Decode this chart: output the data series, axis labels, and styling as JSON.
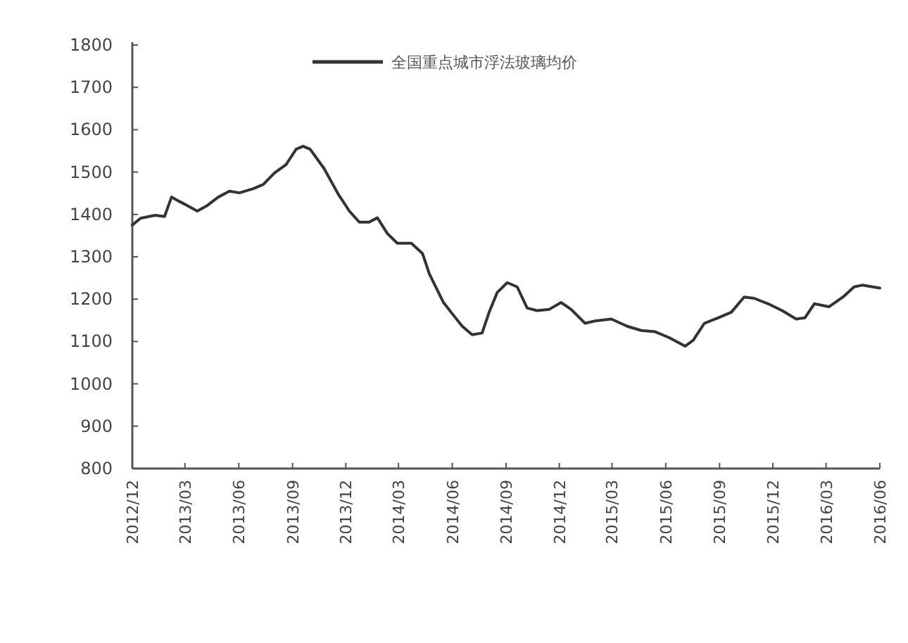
{
  "chart_data": {
    "type": "line",
    "legend": "top",
    "ylim": [
      800,
      1800
    ],
    "yticks": [
      800,
      900,
      1000,
      1100,
      1200,
      1300,
      1400,
      1500,
      1600,
      1700,
      1800
    ],
    "xlim": [
      "2012-12-01",
      "2016-06-01"
    ],
    "xticks": [
      {
        "value": "2012-12-01",
        "label": "2012/12"
      },
      {
        "value": "2013-03-01",
        "label": "2013/03"
      },
      {
        "value": "2013-06-01",
        "label": "2013/06"
      },
      {
        "value": "2013-09-01",
        "label": "2013/09"
      },
      {
        "value": "2013-12-01",
        "label": "2013/12"
      },
      {
        "value": "2014-03-01",
        "label": "2014/03"
      },
      {
        "value": "2014-06-01",
        "label": "2014/06"
      },
      {
        "value": "2014-09-01",
        "label": "2014/09"
      },
      {
        "value": "2014-12-01",
        "label": "2014/12"
      },
      {
        "value": "2015-03-01",
        "label": "2015/03"
      },
      {
        "value": "2015-06-01",
        "label": "2015/06"
      },
      {
        "value": "2015-09-01",
        "label": "2015/09"
      },
      {
        "value": "2015-12-01",
        "label": "2015/12"
      },
      {
        "value": "2016-03-01",
        "label": "2016/03"
      },
      {
        "value": "2016-06-01",
        "label": "2016/06"
      }
    ],
    "series": [
      {
        "name": "全国重点城市浮法玻璃均价",
        "color": "#333333",
        "x": [
          "2012-12-01",
          "2012-12-15",
          "2013-01-09",
          "2013-01-25",
          "2013-02-06",
          "2013-02-19",
          "2013-03-05",
          "2013-03-22",
          "2013-04-08",
          "2013-04-27",
          "2013-05-16",
          "2013-06-02",
          "2013-06-26",
          "2013-07-13",
          "2013-08-01",
          "2013-08-21",
          "2013-09-07",
          "2013-09-19",
          "2013-10-01",
          "2013-10-25",
          "2013-11-18",
          "2013-12-07",
          "2013-12-24",
          "2014-01-10",
          "2014-01-24",
          "2014-02-10",
          "2014-02-27",
          "2014-03-23",
          "2014-04-11",
          "2014-04-23",
          "2014-05-17",
          "2014-05-30",
          "2014-06-18",
          "2014-07-05",
          "2014-07-22",
          "2014-08-03",
          "2014-08-17",
          "2014-09-03",
          "2014-09-20",
          "2014-10-07",
          "2014-10-24",
          "2014-11-14",
          "2014-12-04",
          "2014-12-21",
          "2015-01-14",
          "2015-02-02",
          "2015-02-28",
          "2015-03-27",
          "2015-04-20",
          "2015-05-14",
          "2015-06-07",
          "2015-07-04",
          "2015-07-18",
          "2015-08-06",
          "2015-08-30",
          "2015-09-21",
          "2015-10-13",
          "2015-10-30",
          "2015-11-23",
          "2015-12-17",
          "2016-01-10",
          "2016-01-25",
          "2016-02-10",
          "2016-03-06",
          "2016-03-30",
          "2016-04-18",
          "2016-05-02",
          "2016-06-01"
        ],
        "values": [
          1375,
          1391,
          1398,
          1395,
          1441,
          1431,
          1421,
          1408,
          1421,
          1441,
          1455,
          1451,
          1461,
          1471,
          1498,
          1518,
          1554,
          1561,
          1554,
          1508,
          1448,
          1408,
          1382,
          1382,
          1392,
          1355,
          1332,
          1332,
          1308,
          1259,
          1192,
          1169,
          1136,
          1116,
          1120,
          1169,
          1216,
          1239,
          1229,
          1179,
          1173,
          1176,
          1192,
          1176,
          1143,
          1149,
          1153,
          1136,
          1126,
          1123,
          1109,
          1089,
          1103,
          1143,
          1156,
          1169,
          1205,
          1202,
          1189,
          1173,
          1153,
          1156,
          1189,
          1182,
          1205,
          1229,
          1233,
          1226
        ]
      }
    ]
  }
}
